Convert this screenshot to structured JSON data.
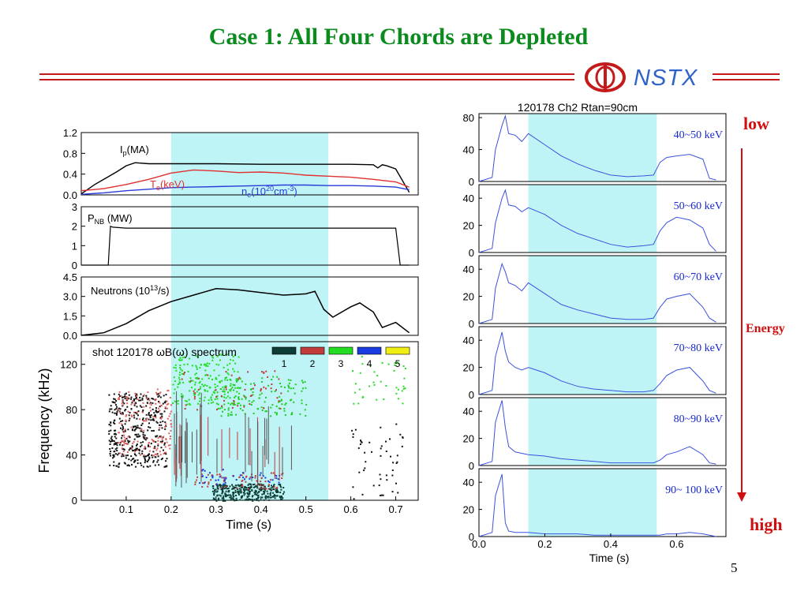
{
  "slide": {
    "title": "Case 1: All Four Chords are Depleted",
    "logo_text": "NSTX",
    "page_number": "5",
    "energy_arrow": {
      "low_label": "low",
      "mid_label": "Energy",
      "high_label": "high"
    }
  },
  "colors": {
    "title": "#0b8a1e",
    "rule": "#c41a1a",
    "shade": "#bff4f7",
    "blue_trace": "#3b52e0",
    "red_label": "#d01010"
  },
  "chart_data": [
    {
      "type": "line",
      "panel": "plasma-current",
      "labels": {
        "ip": "I",
        "ip_sub": "p",
        "ip_unit": "(MA)",
        "te": "T",
        "te_sub": "e",
        "te_unit": "(keV)",
        "ne": "n",
        "ne_sub": "e",
        "ne_unit1": "(10",
        "ne_sup": "20",
        "ne_unit2": "cm",
        "ne_sup2": "-3",
        "ne_close": ")"
      },
      "ylim": [
        0,
        1.2
      ],
      "yticks": [
        "1.2",
        "0.8",
        "0.4",
        "0.0"
      ],
      "series": [
        {
          "name": "Ip(MA)",
          "color": "#000000",
          "x": [
            0.0,
            0.03,
            0.06,
            0.08,
            0.1,
            0.12,
            0.15,
            0.2,
            0.3,
            0.4,
            0.5,
            0.6,
            0.65,
            0.66,
            0.67,
            0.68,
            0.7,
            0.72,
            0.73
          ],
          "y": [
            0.02,
            0.2,
            0.35,
            0.45,
            0.56,
            0.62,
            0.6,
            0.6,
            0.6,
            0.59,
            0.59,
            0.59,
            0.58,
            0.52,
            0.58,
            0.56,
            0.5,
            0.2,
            0.05
          ]
        },
        {
          "name": "Te(keV)",
          "color": "#e03030",
          "x": [
            0.0,
            0.05,
            0.1,
            0.15,
            0.2,
            0.25,
            0.3,
            0.35,
            0.4,
            0.45,
            0.5,
            0.55,
            0.6,
            0.65,
            0.7,
            0.73
          ],
          "y": [
            0.08,
            0.12,
            0.2,
            0.3,
            0.42,
            0.48,
            0.46,
            0.43,
            0.44,
            0.42,
            0.38,
            0.36,
            0.34,
            0.3,
            0.25,
            0.15
          ]
        },
        {
          "name": "ne(10^20 cm^-3)",
          "color": "#2a3bd8",
          "x": [
            0.0,
            0.05,
            0.1,
            0.15,
            0.2,
            0.25,
            0.3,
            0.35,
            0.4,
            0.45,
            0.5,
            0.55,
            0.6,
            0.65,
            0.7,
            0.73
          ],
          "y": [
            0.01,
            0.04,
            0.08,
            0.11,
            0.14,
            0.15,
            0.16,
            0.17,
            0.18,
            0.19,
            0.19,
            0.18,
            0.18,
            0.17,
            0.15,
            0.1
          ]
        }
      ]
    },
    {
      "type": "line",
      "panel": "nbi-power",
      "labels": {
        "p": "P",
        "p_sub": "NB",
        "p_unit": "(MW)"
      },
      "ylim": [
        0,
        3
      ],
      "yticks": [
        "3",
        "2",
        "1",
        "0"
      ],
      "series": [
        {
          "name": "PNB(MW)",
          "color": "#000000",
          "x": [
            0.0,
            0.06,
            0.065,
            0.07,
            0.1,
            0.7,
            0.71,
            0.73
          ],
          "y": [
            0,
            0,
            2.0,
            1.95,
            1.9,
            1.9,
            0,
            0
          ]
        }
      ]
    },
    {
      "type": "line",
      "panel": "neutrons",
      "labels": {
        "n": "Neutrons (10",
        "n_sup": "13",
        "n_unit": "/s)"
      },
      "ylim": [
        0,
        4.5
      ],
      "yticks": [
        "4.5",
        "3.0",
        "1.5",
        "0.0"
      ],
      "series": [
        {
          "name": "Neutrons",
          "color": "#000000",
          "x": [
            0.0,
            0.05,
            0.1,
            0.15,
            0.2,
            0.25,
            0.3,
            0.35,
            0.4,
            0.45,
            0.5,
            0.52,
            0.54,
            0.56,
            0.6,
            0.62,
            0.65,
            0.67,
            0.7,
            0.73
          ],
          "y": [
            0.0,
            0.2,
            0.9,
            1.9,
            2.6,
            3.1,
            3.6,
            3.5,
            3.3,
            3.1,
            3.2,
            3.4,
            2.0,
            1.4,
            2.2,
            2.5,
            1.8,
            0.6,
            1.0,
            0.2
          ]
        }
      ]
    },
    {
      "type": "scatter",
      "panel": "spectrogram",
      "title": "shot 120178 ωB(ω) spectrum",
      "ylabel": "Frequency (kHz)",
      "xlabel": "Time (s)",
      "ylim": [
        0,
        140
      ],
      "xlim": [
        0.0,
        0.75
      ],
      "yticks": [
        "120",
        "80",
        "40",
        "0"
      ],
      "xticks": [
        "0.1",
        "0.2",
        "0.3",
        "0.4",
        "0.5",
        "0.6",
        "0.7"
      ],
      "legend": [
        {
          "label": "1",
          "color": "#0d3d34"
        },
        {
          "label": "2",
          "color": "#c23b3b"
        },
        {
          "label": "3",
          "color": "#22dd22"
        },
        {
          "label": "4",
          "color": "#1a3be0"
        },
        {
          "label": "5",
          "color": "#f0ee12"
        }
      ],
      "shaded_x": [
        0.2,
        0.55
      ]
    },
    {
      "type": "line",
      "panel": "energy-resolved",
      "title": "120178 Ch2 Rtan=90cm",
      "xlabel": "Time (s)",
      "xlim": [
        0.0,
        0.75
      ],
      "xticks": [
        "0.0",
        "0.2",
        "0.4",
        "0.6"
      ],
      "shaded_x": [
        0.15,
        0.54
      ],
      "panels": [
        {
          "label": "40~50 keV",
          "ylim": [
            0,
            85
          ],
          "yticks": [
            "80",
            "40",
            "0"
          ],
          "x": [
            0.0,
            0.04,
            0.05,
            0.07,
            0.08,
            0.09,
            0.11,
            0.13,
            0.15,
            0.2,
            0.25,
            0.3,
            0.35,
            0.4,
            0.45,
            0.5,
            0.53,
            0.55,
            0.57,
            0.6,
            0.64,
            0.68,
            0.7,
            0.72
          ],
          "y": [
            0,
            5,
            40,
            70,
            82,
            60,
            58,
            50,
            60,
            46,
            32,
            22,
            14,
            8,
            6,
            7,
            8,
            24,
            30,
            32,
            34,
            28,
            4,
            2
          ]
        },
        {
          "label": "50~60 keV",
          "ylim": [
            0,
            50
          ],
          "yticks": [
            "40",
            "20",
            "0"
          ],
          "x": [
            0.0,
            0.04,
            0.05,
            0.07,
            0.08,
            0.09,
            0.11,
            0.13,
            0.15,
            0.2,
            0.25,
            0.3,
            0.35,
            0.4,
            0.45,
            0.5,
            0.53,
            0.55,
            0.57,
            0.6,
            0.64,
            0.68,
            0.7,
            0.72
          ],
          "y": [
            0,
            3,
            22,
            40,
            46,
            35,
            34,
            30,
            33,
            28,
            20,
            14,
            10,
            6,
            4,
            5,
            6,
            16,
            22,
            26,
            24,
            18,
            6,
            1
          ]
        },
        {
          "label": "60~70 keV",
          "ylim": [
            0,
            50
          ],
          "yticks": [
            "40",
            "20",
            "0"
          ],
          "x": [
            0.0,
            0.04,
            0.05,
            0.07,
            0.08,
            0.09,
            0.11,
            0.13,
            0.15,
            0.2,
            0.25,
            0.3,
            0.35,
            0.4,
            0.45,
            0.5,
            0.53,
            0.55,
            0.57,
            0.6,
            0.64,
            0.68,
            0.7,
            0.72
          ],
          "y": [
            0,
            3,
            26,
            44,
            38,
            30,
            28,
            24,
            30,
            22,
            14,
            10,
            7,
            4,
            3,
            3,
            4,
            12,
            18,
            20,
            22,
            12,
            4,
            1
          ]
        },
        {
          "label": "70~80 keV",
          "ylim": [
            0,
            50
          ],
          "yticks": [
            "40",
            "20",
            "0"
          ],
          "x": [
            0.0,
            0.04,
            0.05,
            0.07,
            0.08,
            0.09,
            0.11,
            0.13,
            0.15,
            0.2,
            0.25,
            0.3,
            0.35,
            0.4,
            0.45,
            0.5,
            0.53,
            0.55,
            0.57,
            0.6,
            0.64,
            0.68,
            0.7,
            0.72
          ],
          "y": [
            0,
            3,
            28,
            46,
            32,
            24,
            20,
            18,
            20,
            16,
            10,
            6,
            4,
            3,
            2,
            2,
            3,
            8,
            14,
            18,
            20,
            10,
            3,
            1
          ]
        },
        {
          "label": "80~90 keV",
          "ylim": [
            0,
            50
          ],
          "yticks": [
            "40",
            "20",
            "0"
          ],
          "x": [
            0.0,
            0.04,
            0.05,
            0.07,
            0.08,
            0.09,
            0.11,
            0.13,
            0.15,
            0.2,
            0.25,
            0.3,
            0.35,
            0.4,
            0.45,
            0.5,
            0.53,
            0.55,
            0.57,
            0.6,
            0.64,
            0.68,
            0.7,
            0.72
          ],
          "y": [
            0,
            3,
            32,
            48,
            28,
            14,
            10,
            9,
            8,
            7,
            5,
            4,
            3,
            2,
            2,
            2,
            2,
            4,
            8,
            10,
            14,
            8,
            2,
            1
          ]
        },
        {
          "label": "90~ 100 keV",
          "ylim": [
            0,
            50
          ],
          "yticks": [
            "40",
            "20",
            "0"
          ],
          "x": [
            0.0,
            0.04,
            0.05,
            0.07,
            0.08,
            0.09,
            0.11,
            0.13,
            0.15,
            0.2,
            0.25,
            0.3,
            0.35,
            0.4,
            0.45,
            0.5,
            0.53,
            0.55,
            0.57,
            0.6,
            0.64,
            0.68,
            0.7,
            0.72
          ],
          "y": [
            0,
            3,
            30,
            46,
            10,
            4,
            3,
            3,
            3,
            2,
            2,
            2,
            1,
            1,
            1,
            1,
            1,
            1,
            2,
            2,
            3,
            2,
            1,
            0
          ]
        }
      ]
    }
  ]
}
